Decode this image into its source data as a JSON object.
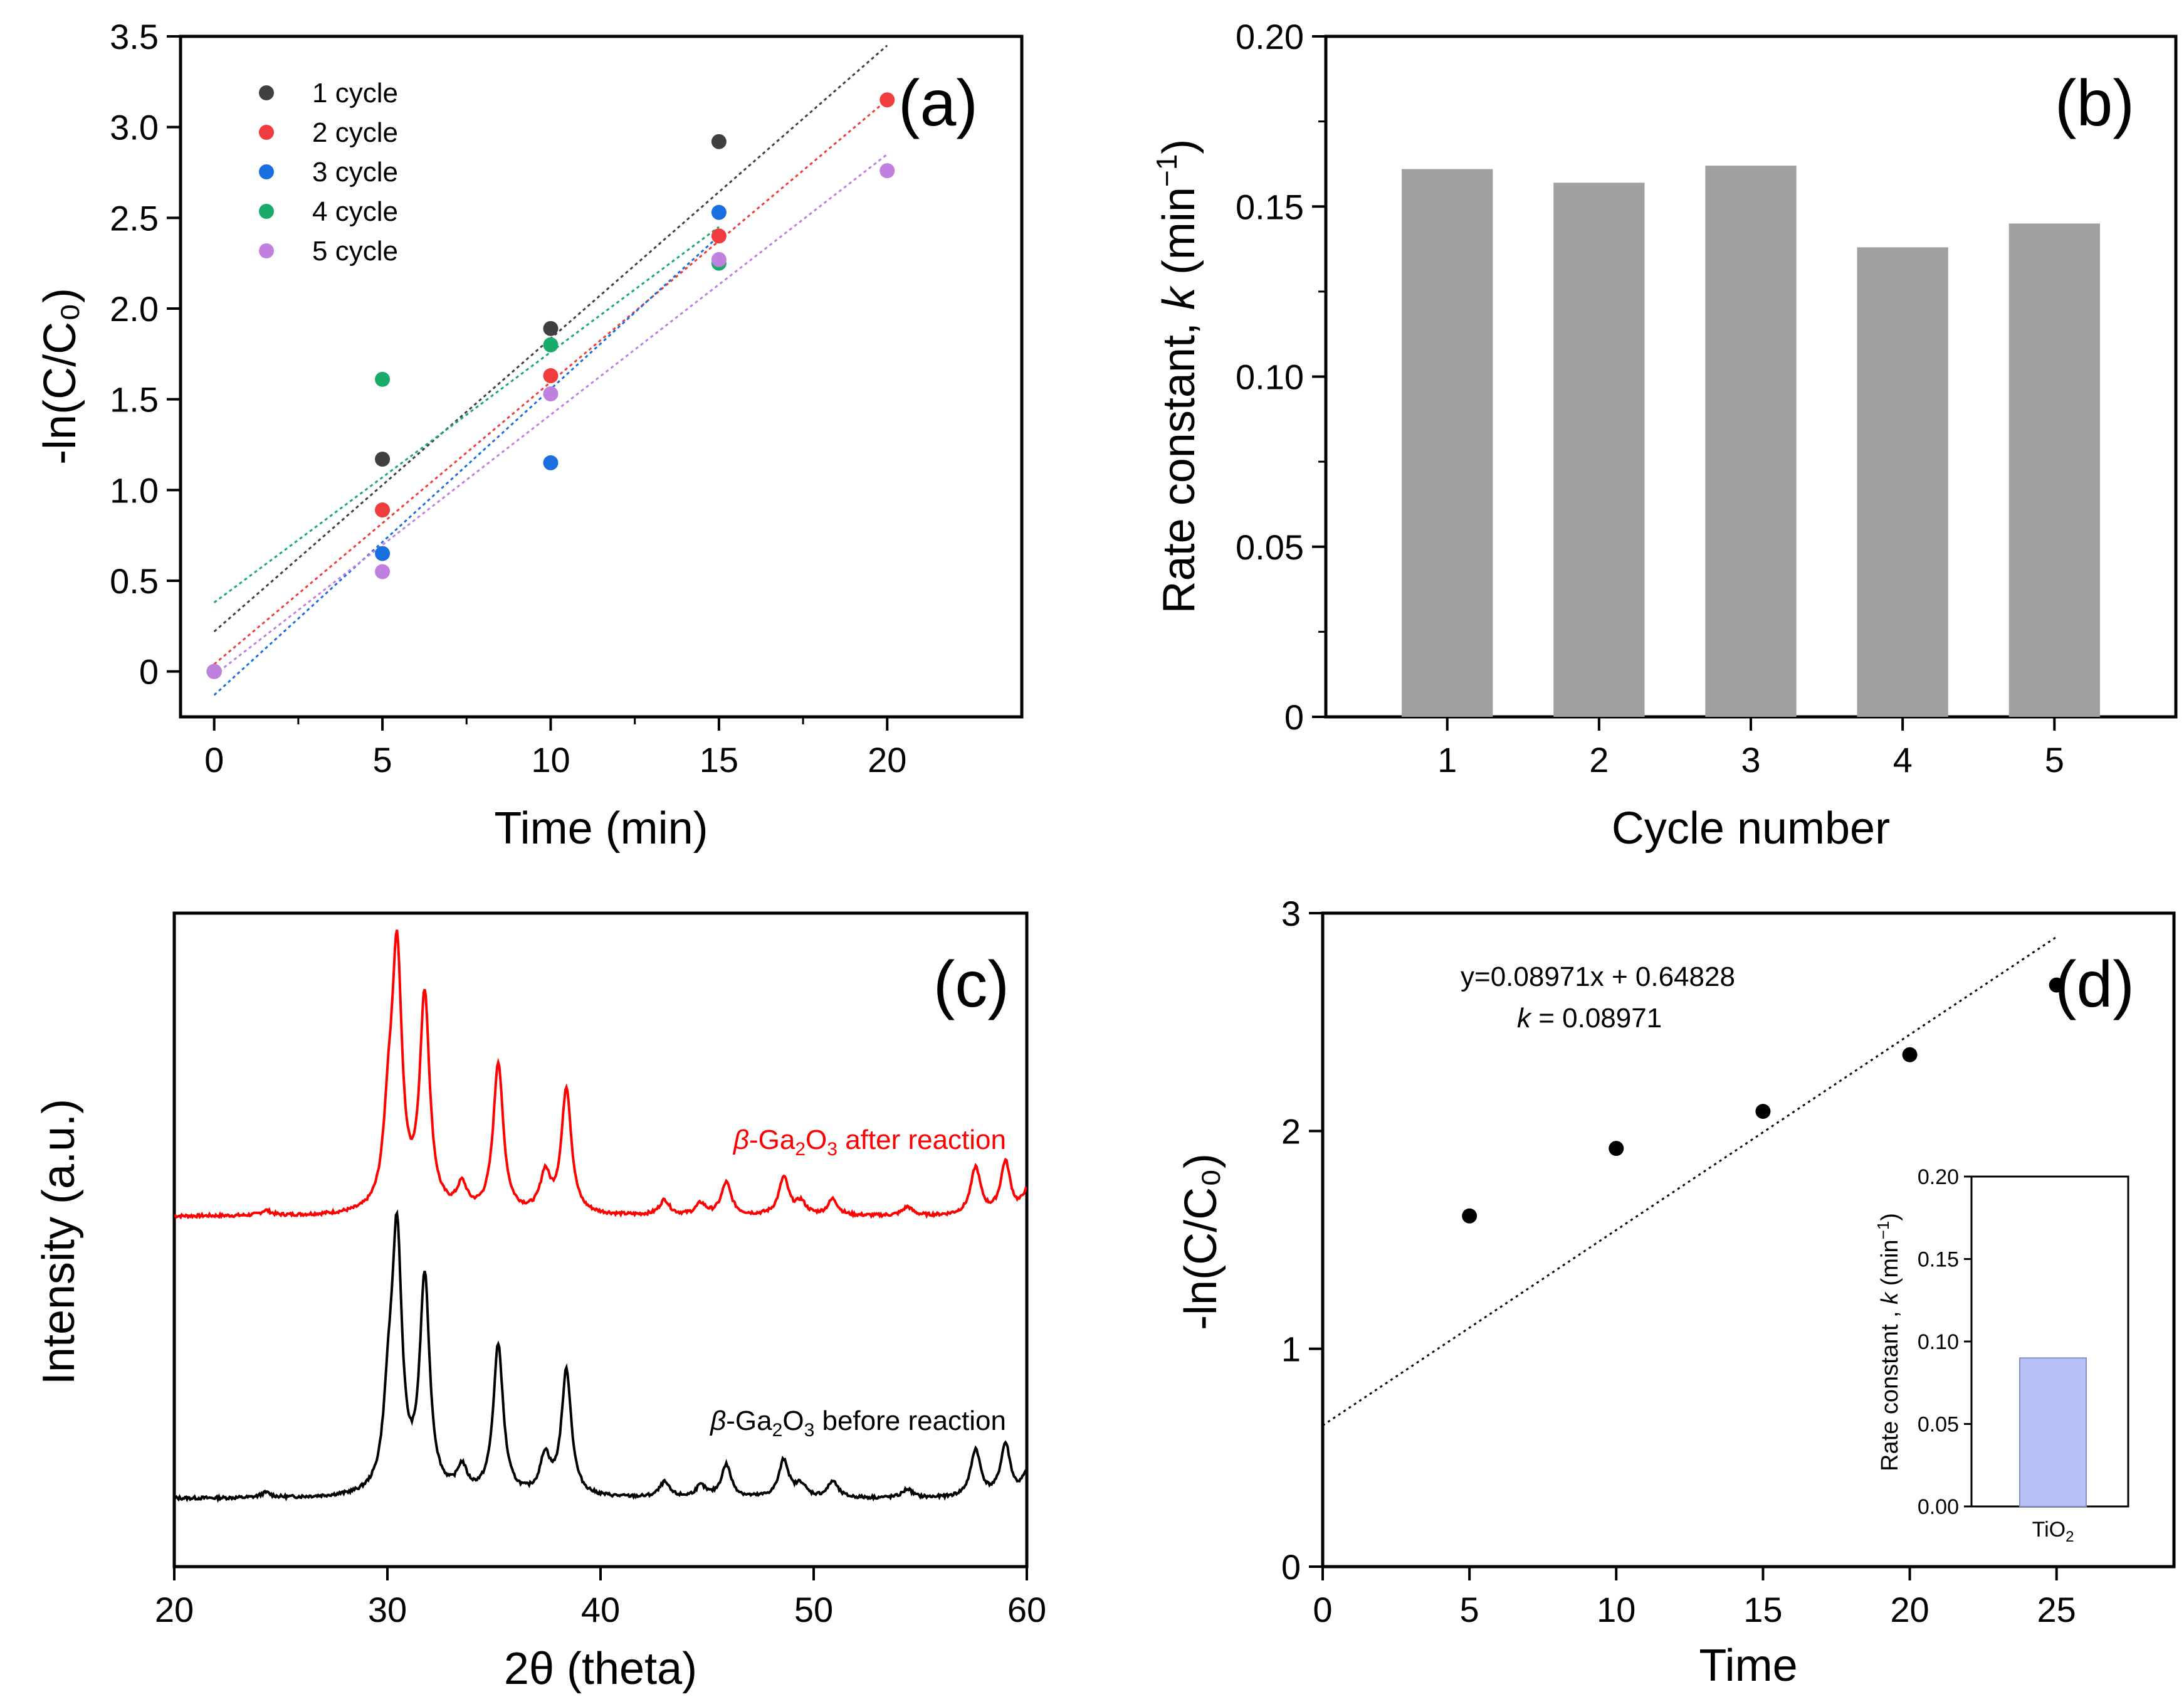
{
  "chart_data": [
    {
      "panel": "(a)",
      "type": "scatter",
      "xlabel": "Time (min)",
      "ylabel": "-ln(C/C₀)",
      "xlim": [
        -1,
        24
      ],
      "ylim": [
        -0.25,
        3.5
      ],
      "xticks": [
        0,
        5,
        10,
        15,
        20
      ],
      "yticks": [
        0,
        0.5,
        1.0,
        1.5,
        2.0,
        2.5,
        3.0,
        3.5
      ],
      "ytick_labels": [
        "0",
        "0.5",
        "1.0",
        "1.5",
        "2.0",
        "2.5",
        "3.0",
        "3.5"
      ],
      "legend_position": "top-left",
      "series": [
        {
          "name": "1 cycle",
          "color": "#404040",
          "x": [
            0,
            5,
            10,
            15
          ],
          "y": [
            0,
            1.17,
            1.89,
            2.92
          ],
          "fit": [
            [
              0,
              0.22
            ],
            [
              20,
              3.45
            ]
          ]
        },
        {
          "name": "2 cycle",
          "color": "#f03c3c",
          "x": [
            0,
            5,
            10,
            15,
            20
          ],
          "y": [
            0,
            0.89,
            1.63,
            2.4,
            3.15
          ],
          "fit": [
            [
              0,
              0.04
            ],
            [
              20,
              3.15
            ]
          ]
        },
        {
          "name": "3 cycle",
          "color": "#1a6fe0",
          "x": [
            0,
            5,
            10,
            15
          ],
          "y": [
            0,
            0.65,
            1.15,
            2.53
          ],
          "fit": [
            [
              0,
              -0.13
            ],
            [
              15,
              2.4
            ]
          ]
        },
        {
          "name": "4 cycle",
          "color": "#1aaa6a",
          "x": [
            0,
            5,
            10,
            15
          ],
          "y": [
            0,
            1.61,
            1.8,
            2.25
          ],
          "fit": [
            [
              0,
              0.38
            ],
            [
              15,
              2.45
            ]
          ]
        },
        {
          "name": "5 cycle",
          "color": "#c080e0",
          "x": [
            0,
            5,
            10,
            15,
            20
          ],
          "y": [
            0,
            0.55,
            1.53,
            2.27,
            2.76
          ],
          "fit": [
            [
              0,
              -0.02
            ],
            [
              20,
              2.85
            ]
          ]
        }
      ]
    },
    {
      "panel": "(b)",
      "type": "bar",
      "xlabel": "Cycle number",
      "ylabel_prefix": "Rate constant, ",
      "ylabel_var": "k",
      "ylabel_unit": " (min",
      "ylabel_sup": "−1",
      "ylabel_close": ")",
      "categories": [
        "1",
        "2",
        "3",
        "4",
        "5"
      ],
      "values": [
        0.161,
        0.157,
        0.162,
        0.138,
        0.145
      ],
      "bar_color": "#a0a0a0",
      "ylim": [
        0,
        0.2
      ],
      "xlim": [
        0.2,
        5.8
      ],
      "yticks": [
        0,
        0.05,
        0.1,
        0.15,
        0.2
      ],
      "ytick_labels": [
        "0",
        "0.05",
        "0.10",
        "0.15",
        "0.20"
      ]
    },
    {
      "panel": "(c)",
      "type": "line",
      "xlabel": "2θ (theta)",
      "ylabel": "Intensity (a.u.)",
      "xlim": [
        20,
        60
      ],
      "xticks": [
        20,
        30,
        40,
        50,
        60
      ],
      "peaks": [
        [
          24.3,
          4
        ],
        [
          30.05,
          60
        ],
        [
          30.45,
          200
        ],
        [
          31.75,
          170
        ],
        [
          33.5,
          20
        ],
        [
          35.2,
          120
        ],
        [
          37.4,
          30
        ],
        [
          38.4,
          100
        ],
        [
          43.0,
          12
        ],
        [
          44.7,
          9
        ],
        [
          45.9,
          26
        ],
        [
          48.6,
          30
        ],
        [
          49.4,
          10
        ],
        [
          50.9,
          13
        ],
        [
          54.4,
          7
        ],
        [
          57.6,
          38
        ],
        [
          59.0,
          42
        ],
        [
          60.0,
          18
        ]
      ],
      "series": [
        {
          "name_prefix": "β",
          "name_main": "-Ga",
          "sub1": "2",
          "name_mid": "O",
          "sub2": "3",
          "name_suffix": " after reaction",
          "color": "#ff0000"
        },
        {
          "name_prefix": "β",
          "name_main": "-Ga",
          "sub1": "2",
          "name_mid": "O",
          "sub2": "3",
          "name_suffix": " before reaction",
          "color": "#000000"
        }
      ]
    },
    {
      "panel": "(d)",
      "type": "scatter",
      "xlabel": "Time",
      "ylabel": "-ln(C/C₀)",
      "xlim": [
        0,
        29
      ],
      "ylim": [
        0,
        3
      ],
      "xticks": [
        0,
        5,
        10,
        15,
        20,
        25
      ],
      "yticks": [
        0,
        1,
        2,
        3
      ],
      "points": {
        "x": [
          5,
          10,
          15,
          20,
          25
        ],
        "y": [
          1.61,
          1.92,
          2.09,
          2.35,
          2.67
        ]
      },
      "fit": {
        "slope": 0.08971,
        "intercept": 0.64828,
        "x_range": [
          0,
          25
        ]
      },
      "equation": "y=0.08971x + 0.64828",
      "k_var": "k",
      "k_value": " = 0.08971",
      "inset": {
        "type": "bar",
        "category_main": "TiO",
        "category_sub": "2",
        "value": 0.09,
        "bar_color": "#b8c0f8",
        "ylim": [
          0,
          0.2
        ],
        "yticks": [
          0,
          0.05,
          0.1,
          0.15,
          0.2
        ],
        "ytick_labels": [
          "0.00",
          "0.05",
          "0.10",
          "0.15",
          "0.20"
        ],
        "ylabel_prefix": "Rate constant , ",
        "ylabel_var": "k",
        "ylabel_unit": " (min",
        "ylabel_sup": "−1",
        "ylabel_close": ")"
      }
    }
  ]
}
